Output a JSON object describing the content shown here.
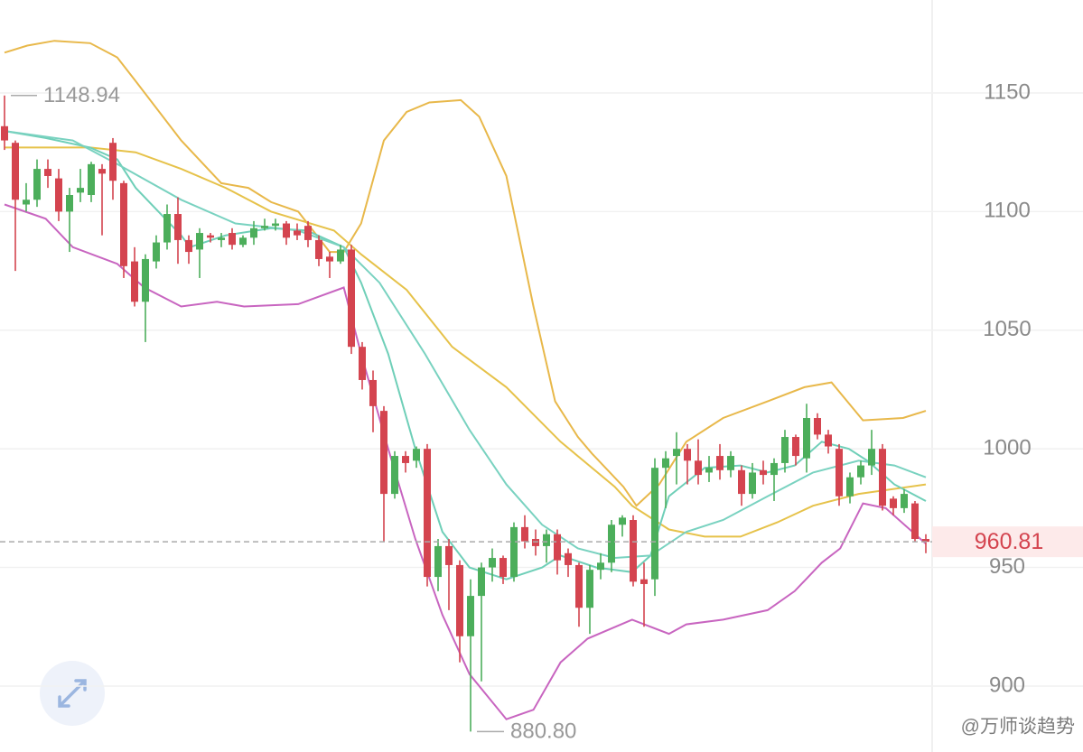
{
  "chart_data": {
    "type": "candlestick",
    "ylim": [
      872.2,
      1189.2
    ],
    "yticks": [
      900,
      950,
      1000,
      1050,
      1100,
      1150
    ],
    "grid": true,
    "up_color": "#4cae5b",
    "down_color": "#d4444f",
    "open": [
      1136,
      1129,
      1103,
      1105,
      1118,
      1114,
      1100,
      1108,
      1107,
      1118,
      1129,
      1112,
      1079,
      1062,
      1079,
      1087,
      1099,
      1088,
      1084,
      1090,
      1088,
      1091,
      1086,
      1089,
      1093,
      1094,
      1095,
      1092,
      1094,
      1088,
      1081,
      1079,
      1084,
      1043,
      1029,
      1016,
      981,
      997,
      995,
      1000,
      946,
      959,
      951,
      921,
      938,
      950,
      954,
      946,
      967,
      962,
      959,
      964,
      956,
      951,
      933,
      949,
      952,
      968,
      970,
      945,
      945,
      992,
      997,
      1000,
      995,
      990,
      997,
      991,
      991,
      981,
      991,
      989,
      994,
      1005,
      996,
      1013,
      1006,
      1000,
      980,
      988,
      993,
      1000,
      979,
      975,
      977,
      962
    ],
    "high": [
      1148.94,
      1130,
      1112,
      1122,
      1122,
      1118,
      1110,
      1118,
      1121,
      1120,
      1131,
      1113,
      1085,
      1082,
      1090,
      1103,
      1106,
      1090,
      1093,
      1091,
      1091,
      1093,
      1090,
      1096,
      1097,
      1097,
      1096,
      1095,
      1096,
      1090,
      1083,
      1086,
      1086,
      1045,
      1033,
      1018,
      999,
      999,
      1001,
      1002,
      962,
      962,
      953,
      945,
      952,
      958,
      955,
      969,
      972,
      966,
      966,
      966,
      958,
      952,
      951,
      956,
      970,
      972,
      972,
      952,
      996,
      999,
      1007,
      1002,
      1004,
      997,
      1002,
      999,
      993,
      994,
      995,
      996,
      1008,
      1006,
      1019,
      1015,
      1008,
      1002,
      990,
      995,
      1008,
      1002,
      980,
      983,
      978,
      964
    ],
    "low": [
      1126,
      1075,
      1100,
      1102,
      1110,
      1096,
      1083,
      1104,
      1104,
      1090,
      1105,
      1072,
      1060,
      1045,
      1076,
      1084,
      1078,
      1078,
      1072,
      1087,
      1085,
      1084,
      1085,
      1086,
      1092,
      1092,
      1086,
      1088,
      1085,
      1077,
      1072,
      1078,
      1040,
      1025,
      1007,
      961,
      979,
      990,
      992,
      942,
      940,
      932,
      910,
      880.8,
      902,
      944,
      943,
      944,
      958,
      955,
      952,
      947,
      946,
      925,
      922,
      945,
      948,
      963,
      942,
      925,
      938,
      975,
      985,
      985,
      985,
      986,
      987,
      988,
      976,
      979,
      985,
      978,
      990,
      993,
      990,
      1004,
      998,
      976,
      977,
      985,
      989,
      974,
      972,
      973,
      961,
      956
    ],
    "close": [
      1130,
      1105,
      1105,
      1118,
      1115,
      1100,
      1107,
      1110,
      1120,
      1116,
      1113,
      1077,
      1062,
      1080,
      1087,
      1099,
      1088,
      1083,
      1091,
      1089,
      1089,
      1086,
      1089,
      1093,
      1094,
      1095,
      1089,
      1090,
      1088,
      1080,
      1079,
      1084,
      1043,
      1029,
      1018,
      981,
      997,
      994,
      1000,
      946,
      959,
      951,
      921,
      938,
      950,
      954,
      946,
      967,
      961,
      959,
      964,
      953,
      951,
      933,
      949,
      952,
      968,
      971,
      944,
      943,
      992,
      996,
      1000,
      995,
      989,
      992,
      991,
      997,
      981,
      990,
      989,
      994,
      1005,
      997,
      1013,
      1006,
      1001,
      980,
      988,
      993,
      1000,
      976,
      975,
      981,
      962,
      960.81
    ],
    "lines": [
      {
        "color": "#e8b84a",
        "x": [
          0,
          2.1,
          4.6,
          7.9,
          10.4,
          12.1,
          16.3,
          20,
          22.5,
          24.6,
          27.1,
          30,
          31.3,
          32.9,
          35,
          37.1,
          39.2,
          42.1,
          43.8,
          46.3,
          48.8,
          50.8,
          52.9,
          54.2,
          57.1,
          58.3,
          60.4,
          62.9,
          66.3,
          70.4,
          73.8,
          76.3,
          79.2,
          82.9,
          85
        ],
        "values": [
          1167,
          1170,
          1172,
          1171,
          1165,
          1155,
          1130,
          1112,
          1110,
          1104,
          1100,
          1083,
          1083,
          1095,
          1130,
          1142,
          1146,
          1147,
          1140,
          1115,
          1060,
          1020,
          1005,
          998,
          984,
          976,
          985,
          1003,
          1013,
          1020,
          1026,
          1028,
          1012,
          1013,
          1016
        ]
      },
      {
        "color": "#e6c24a",
        "x": [
          0,
          7.9,
          12.1,
          16.3,
          20.4,
          24.6,
          30.4,
          32.9,
          37.1,
          41.3,
          46.3,
          51.3,
          56.3,
          57.9,
          61.3,
          64.6,
          67.9,
          71.3,
          74.6,
          78.8,
          85
        ],
        "values": [
          1127,
          1127,
          1125,
          1118,
          1110,
          1100,
          1092,
          1082,
          1067,
          1043,
          1026,
          1003,
          984,
          976,
          966,
          963,
          963,
          969,
          976,
          981,
          985
        ]
      },
      {
        "color": "#6fcfb8",
        "x": [
          0,
          3.8,
          7.9,
          10.4,
          12.1,
          16.3,
          17.1,
          20.4,
          24.6,
          27.9,
          31.3,
          32.9,
          35.4,
          37.9,
          40.4,
          42.9,
          46.3,
          49.6,
          51.3,
          54.6,
          57.9,
          59.6,
          61.3,
          64.6,
          67.9,
          70.4,
          72.9,
          75.4,
          77.9,
          79.6,
          82.1,
          85
        ],
        "values": [
          1134,
          1131,
          1127,
          1122,
          1110,
          1090,
          1085,
          1090,
          1093,
          1092,
          1085,
          1070,
          1040,
          1000,
          965,
          950,
          945,
          950,
          955,
          950,
          948,
          955,
          980,
          992,
          993,
          990,
          993,
          1003,
          1000,
          995,
          985,
          978
        ]
      },
      {
        "color": "#79d2c0",
        "x": [
          0,
          6.3,
          10.4,
          16.3,
          21.3,
          27.1,
          31.3,
          34.6,
          38.8,
          42.9,
          46.3,
          49.6,
          52.9,
          56.3,
          59.6,
          62.9,
          66.3,
          70.4,
          74.6,
          78.8,
          82.1,
          85
        ],
        "values": [
          1134,
          1130,
          1120,
          1105,
          1095,
          1092,
          1085,
          1070,
          1040,
          1008,
          985,
          968,
          958,
          954,
          955,
          965,
          970,
          980,
          990,
          995,
          993,
          988
        ]
      },
      {
        "color": "#c865c0",
        "x": [
          0,
          3.8,
          6.3,
          10.4,
          12.9,
          16.3,
          19.6,
          22.1,
          27.1,
          31.3,
          32.9,
          35.4,
          37.9,
          40.4,
          42.9,
          46.3,
          48.8,
          51.3,
          53.8,
          57.9,
          61.3,
          62.9,
          66.3,
          70.4,
          72.9,
          75.4,
          77.1,
          79.2,
          81.3,
          85
        ],
        "values": [
          1103,
          1097,
          1085,
          1078,
          1068,
          1060,
          1062,
          1060,
          1061,
          1068,
          1040,
          1000,
          962,
          930,
          905,
          886,
          890,
          910,
          920,
          928,
          922,
          926,
          928,
          932,
          940,
          952,
          958,
          977,
          975,
          960
        ]
      }
    ],
    "high_label": "1148.94",
    "low_label": "880.80",
    "last_price": 960.81,
    "watermark": "@万师谈趋势"
  }
}
